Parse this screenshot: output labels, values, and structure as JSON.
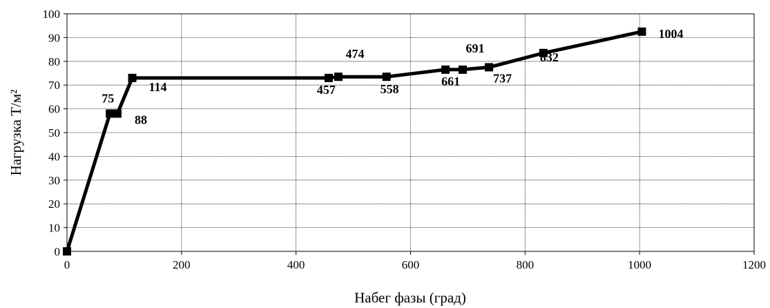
{
  "chart_data": {
    "type": "line",
    "title": "",
    "xlabel": "Набег фазы (град)",
    "ylabel": "Нагрузка Т/м²",
    "xlim": [
      0,
      1200
    ],
    "ylim": [
      0,
      100
    ],
    "x_ticks": [
      0,
      200,
      400,
      600,
      800,
      1000,
      1200
    ],
    "y_ticks": [
      0,
      10,
      20,
      30,
      40,
      50,
      60,
      70,
      80,
      90,
      100
    ],
    "grid": true,
    "legend": "none",
    "line_color": "#000000",
    "marker": "square",
    "series": [
      {
        "x": [
          0,
          75,
          88,
          114,
          457,
          474,
          558,
          661,
          691,
          737,
          832,
          1004
        ],
        "y": [
          0,
          58,
          58,
          73,
          73,
          73.5,
          73.5,
          76.5,
          76.5,
          77.5,
          83.5,
          92.5
        ]
      }
    ],
    "data_labels": [
      "75",
      "88",
      "114",
      "457",
      "474",
      "558",
      "661",
      "691",
      "737",
      "832",
      "1004"
    ]
  }
}
